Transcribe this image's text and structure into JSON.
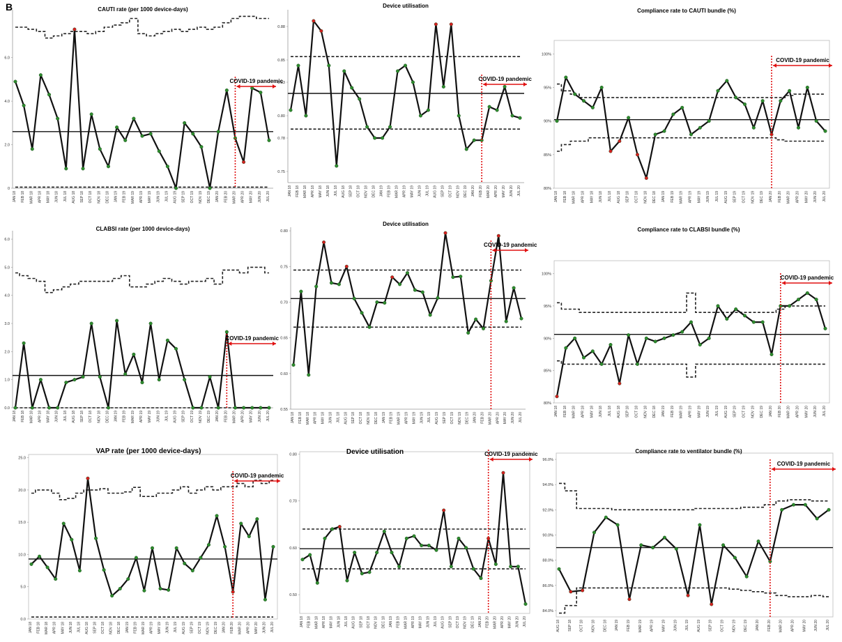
{
  "panel_label": "B",
  "colors": {
    "line": "#111111",
    "marker_normal": "#2e8b2e",
    "marker_signal": "#d42020",
    "covid": "#e01010"
  },
  "chart_data": [
    {
      "type": "line",
      "title": "CAUTI rate (per 1000 device-days)",
      "covid_label": "COVID-19 pandemic",
      "yticks": [
        "0",
        "2.0",
        "4.0",
        "6.0"
      ],
      "ylim": [
        0,
        8.2
      ],
      "x": [
        "JAN 18",
        "FEB 18",
        "MAR 18",
        "APR 18",
        "MAY 18",
        "JUN 18",
        "JUL 18",
        "AUG 18",
        "SEP 18",
        "OCT 18",
        "NOV 18",
        "DEC 18",
        "JAN 19",
        "FEB 19",
        "MAR 19",
        "APR 19",
        "MAY 19",
        "JUN 19",
        "JUL 19",
        "AUG 19",
        "SEP 19",
        "OCT 19",
        "NOV 19",
        "DEC 19",
        "JAN 20",
        "FEB 20",
        "MAR 20",
        "APR 20",
        "MAY 20",
        "JUN 20",
        "JUL 20"
      ],
      "values": [
        4.9,
        3.8,
        1.8,
        5.2,
        4.3,
        3.2,
        0.9,
        7.3,
        0.9,
        3.4,
        1.8,
        1.0,
        2.8,
        2.2,
        3.2,
        2.4,
        2.5,
        1.7,
        1.0,
        0.0,
        3.0,
        2.5,
        1.9,
        0.0,
        2.6,
        4.5,
        2.3,
        1.2,
        4.6,
        4.4,
        2.2
      ],
      "signals": [
        7,
        27
      ],
      "center": 2.6,
      "lcl": 0.05,
      "ucl": [
        7.4,
        7.4,
        7.3,
        7.2,
        6.9,
        7.0,
        7.1,
        7.2,
        7.2,
        7.1,
        7.2,
        7.4,
        7.5,
        7.6,
        7.8,
        7.1,
        7.0,
        7.1,
        7.2,
        7.3,
        7.2,
        7.3,
        7.4,
        7.3,
        7.4,
        7.6,
        7.8,
        7.9,
        7.9,
        7.8,
        7.8
      ],
      "covid_index": 26
    },
    {
      "type": "line",
      "title": "Device utilisation",
      "covid_label": "COVID-19 pandemic",
      "yticks": [
        "0.75",
        "0.78",
        "0.80",
        "0.83",
        "0.85",
        "0.88"
      ],
      "ylim": [
        0.74,
        0.895
      ],
      "x": [
        "JAN 18",
        "FEB 18",
        "MAR 18",
        "APR 18",
        "MAY 18",
        "JUN 18",
        "JUL 18",
        "AUG 18",
        "SEP 18",
        "OCT 18",
        "NOV 18",
        "DEC 18",
        "JAN 19",
        "FEB 19",
        "MAR 19",
        "APR 19",
        "MAY 19",
        "JUN 19",
        "JUL 19",
        "AUG 19",
        "SEP 19",
        "OCT 19",
        "NOV 19",
        "DEC 19",
        "JAN 20",
        "FEB 20",
        "MAR 20",
        "APR 20",
        "MAY 20",
        "JUN 20",
        "JUL 20"
      ],
      "values": [
        0.805,
        0.845,
        0.8,
        0.885,
        0.876,
        0.845,
        0.755,
        0.84,
        0.825,
        0.815,
        0.79,
        0.78,
        0.78,
        0.79,
        0.84,
        0.845,
        0.83,
        0.8,
        0.805,
        0.882,
        0.826,
        0.882,
        0.8,
        0.77,
        0.778,
        0.778,
        0.808,
        0.805,
        0.826,
        0.8,
        0.798
      ],
      "signals": [
        3,
        4,
        19,
        21
      ],
      "center": 0.82,
      "lcl": 0.788,
      "ucl": 0.853,
      "covid_index": 25
    },
    {
      "type": "line",
      "title": "Compliance rate to CAUTI bundle (%)",
      "covid_label": "COVID-19 pandemic",
      "yticks": [
        "80%",
        "85%",
        "90%",
        "95%",
        "100%"
      ],
      "ylim": [
        80,
        102
      ],
      "x": [
        "JAN 18",
        "FEB 18",
        "MAR 18",
        "APR 18",
        "MAY 18",
        "JUN 18",
        "JUL 18",
        "AUG 18",
        "SEP 18",
        "OCT 18",
        "NOV 18",
        "DEC 18",
        "JAN 19",
        "FEB 19",
        "MAR 19",
        "APR 19",
        "MAY 19",
        "JUN 19",
        "JUL 19",
        "AUG 19",
        "SEP 19",
        "OCT 19",
        "NOV 19",
        "DEC 19",
        "JAN 20",
        "FEB 20",
        "MAR 20",
        "APR 20",
        "MAY 20",
        "JUN 20",
        "JUL 20"
      ],
      "values": [
        90,
        96.5,
        94,
        93,
        92,
        95,
        85.5,
        87,
        90.5,
        85,
        81.5,
        88,
        88.5,
        91,
        92,
        88,
        89,
        90,
        94.5,
        96,
        93.5,
        92.5,
        89,
        93,
        88,
        93,
        94.5,
        89,
        95,
        90,
        88.5
      ],
      "signals": [
        6,
        7,
        9,
        10,
        24
      ],
      "center": 90.2,
      "lcl": [
        85.5,
        86.5,
        87,
        87,
        87.5,
        87.5,
        87.5,
        87.5,
        87.5,
        87.5,
        87.5,
        87.5,
        87.5,
        87.5,
        87.5,
        87.5,
        87.5,
        87.5,
        87.5,
        87.5,
        87.5,
        87.5,
        87.5,
        87.5,
        87.5,
        87.2,
        87,
        87,
        87,
        87,
        87
      ],
      "ucl": [
        95.5,
        94.5,
        94,
        93.5,
        93.5,
        93.5,
        93.5,
        93.5,
        93.5,
        93.5,
        93.5,
        93.5,
        93.5,
        93.5,
        93.5,
        93.5,
        93.5,
        93.5,
        93.5,
        93.5,
        93.5,
        93.5,
        93.5,
        93.5,
        93.5,
        93.5,
        93.8,
        94,
        94,
        94,
        94
      ],
      "covid_index": 24
    },
    {
      "type": "line",
      "title": "CLABSI rate (per 1000 device-days)",
      "covid_label": "COVID-19 pandemic",
      "yticks": [
        "0.0",
        "1.0",
        "2.0",
        "3.0",
        "4.0",
        "5.0",
        "6.0"
      ],
      "ylim": [
        0,
        6.3
      ],
      "x": [
        "JAN 18",
        "FEB 18",
        "MAR 18",
        "APR 18",
        "MAY 18",
        "JUN 18",
        "JUL 18",
        "AUG 18",
        "SEP 18",
        "OCT 18",
        "NOV 18",
        "DEC 18",
        "JAN 19",
        "FEB 19",
        "MAR 19",
        "APR 19",
        "MAY 19",
        "JUN 19",
        "JUL 19",
        "AUG 19",
        "SEP 19",
        "OCT 19",
        "NOV 19",
        "DEC 19",
        "JAN 20",
        "FEB 20",
        "MAR 20",
        "APR 20",
        "MAY 20",
        "JUN 20",
        "JUL 20"
      ],
      "values": [
        0.0,
        2.3,
        0.0,
        1.0,
        0.0,
        0.0,
        0.9,
        1.0,
        1.1,
        3.0,
        1.1,
        0.0,
        3.1,
        1.2,
        1.9,
        0.9,
        3.0,
        1.0,
        2.4,
        2.1,
        1.0,
        0.0,
        0.0,
        1.1,
        0.0,
        2.7,
        0.0,
        0.0,
        0.0,
        0.0,
        0.0
      ],
      "signals": [],
      "center": 1.15,
      "lcl": 0.0,
      "ucl": [
        4.8,
        4.7,
        4.6,
        4.5,
        4.1,
        4.2,
        4.3,
        4.4,
        4.5,
        4.5,
        4.5,
        4.5,
        4.6,
        4.7,
        4.3,
        4.3,
        4.4,
        4.5,
        4.6,
        4.5,
        4.4,
        4.5,
        4.5,
        4.6,
        4.4,
        4.9,
        4.9,
        4.8,
        5.0,
        5.0,
        4.8
      ],
      "covid_index": 25
    },
    {
      "type": "line",
      "title": "Device utilisation",
      "covid_label": "COVID-19 pandemic",
      "yticks": [
        "0.55",
        "0.60",
        "0.65",
        "0.70",
        "0.75",
        "0.80"
      ],
      "ylim": [
        0.55,
        0.805
      ],
      "x": [
        "JAN 18",
        "FEB 18",
        "MAR 18",
        "APR 18",
        "MAY 18",
        "JUN 18",
        "JUL 18",
        "AUG 18",
        "SEP 18",
        "OCT 18",
        "NOV 18",
        "DEC 18",
        "JAN 19",
        "FEB 19",
        "MAR 19",
        "APR 19",
        "MAY 19",
        "JUN 19",
        "JUL 19",
        "AUG 19",
        "SEP 19",
        "OCT 19",
        "NOV 19",
        "DEC 19",
        "JAN 20",
        "FEB 20",
        "MAR 20",
        "APR 20",
        "MAY 20",
        "JUN 20",
        "JUL 20"
      ],
      "values": [
        0.612,
        0.715,
        0.598,
        0.722,
        0.784,
        0.727,
        0.725,
        0.75,
        0.705,
        0.685,
        0.665,
        0.7,
        0.699,
        0.735,
        0.725,
        0.741,
        0.717,
        0.714,
        0.682,
        0.706,
        0.797,
        0.735,
        0.736,
        0.657,
        0.676,
        0.663,
        0.73,
        0.793,
        0.673,
        0.72,
        0.677
      ],
      "signals": [
        4,
        7,
        13,
        20,
        27
      ],
      "center": 0.705,
      "lcl": 0.665,
      "ucl": 0.745,
      "covid_index": 26
    },
    {
      "type": "line",
      "title": "Compliance rate to CLABSI bundle (%)",
      "covid_label": "COVID-19 pandemic",
      "yticks": [
        "80%",
        "85%",
        "90%",
        "95%",
        "100%"
      ],
      "ylim": [
        80,
        102
      ],
      "x": [
        "JAN 18",
        "FEB 18",
        "MAR 18",
        "APR 18",
        "MAY 18",
        "JUN 18",
        "JUL 18",
        "AUG 18",
        "SEP 18",
        "OCT 18",
        "NOV 18",
        "DEC 18",
        "JAN 19",
        "FEB 19",
        "MAR 19",
        "APR 19",
        "MAY 19",
        "JUN 19",
        "JUL 19",
        "AUG 19",
        "SEP 19",
        "OCT 19",
        "NOV 19",
        "DEC 19",
        "JAN 20",
        "FEB 20",
        "MAR 20",
        "APR 20",
        "MAY 20",
        "JUN 20",
        "JUL 20"
      ],
      "values": [
        81,
        88.5,
        90,
        87,
        88,
        86,
        89,
        83,
        90.5,
        86,
        90,
        89.5,
        90,
        90.5,
        91,
        92.5,
        89,
        90,
        95,
        93,
        94.5,
        93.5,
        92.5,
        92.5,
        87.5,
        95,
        95,
        96,
        97,
        96,
        91.5
      ],
      "signals": [
        0,
        7
      ],
      "center": 90.6,
      "lcl": [
        86.5,
        86,
        86,
        86,
        86,
        86,
        86,
        86,
        86,
        86,
        86,
        86,
        86,
        86,
        86,
        84,
        86,
        86,
        86,
        86,
        86,
        86,
        86,
        86,
        86,
        86,
        86,
        86,
        86,
        86,
        86
      ],
      "ucl": [
        95.5,
        94.5,
        94.5,
        94,
        94,
        94,
        94,
        94,
        94,
        94,
        94,
        94,
        94,
        94,
        94,
        97,
        94,
        94,
        94,
        94,
        94,
        94,
        94,
        94,
        94,
        94.5,
        95,
        95,
        95,
        95,
        95
      ],
      "covid_index": 25
    },
    {
      "type": "line",
      "title": "VAP rate (per 1000 device-days)",
      "covid_label": "COVID-19 pandemic",
      "yticks": [
        "0.0",
        "5.0",
        "10.0",
        "15.0",
        "20.0",
        "25.0"
      ],
      "ylim": [
        0,
        25.5
      ],
      "x": [
        "JAN 18",
        "FEB 18",
        "MAR 18",
        "APR 18",
        "MAY 18",
        "JUN 18",
        "JUL 18",
        "AUG 18",
        "SEP 18",
        "OCT 18",
        "NOV 18",
        "DEC 18",
        "JAN 19",
        "FEB 19",
        "MAR 19",
        "APR 19",
        "MAY 19",
        "JUN 19",
        "JUL 19",
        "AUG 19",
        "SEP 19",
        "OCT 19",
        "NOV 19",
        "DEC 19",
        "JAN 20",
        "FEB 20",
        "MAR 20",
        "APR 20",
        "MAY 20",
        "JUN 20",
        "JUL 20"
      ],
      "values": [
        8.5,
        9.7,
        8.0,
        6.2,
        14.8,
        12.3,
        7.5,
        21.8,
        12.5,
        7.6,
        3.6,
        4.7,
        6.2,
        9.5,
        4.4,
        11.0,
        4.7,
        4.5,
        11.0,
        8.6,
        7.5,
        9.5,
        11.5,
        16.0,
        11.2,
        4.2,
        14.8,
        12.8,
        15.5,
        3.0,
        11.2
      ],
      "signals": [
        7,
        25
      ],
      "center": 9.3,
      "lcl": 0.3,
      "ucl": [
        19.5,
        20,
        20,
        19.5,
        18.5,
        18.7,
        19.5,
        20,
        20,
        20.2,
        19.5,
        19.5,
        19.7,
        20.4,
        19,
        19,
        19.5,
        19.5,
        20,
        20.5,
        19.5,
        20,
        20.5,
        20,
        20.5,
        20.5,
        21,
        20.5,
        21.5,
        21,
        21.5
      ],
      "covid_index": 25
    },
    {
      "type": "line",
      "title": "Device utilisation",
      "covid_label": "COVID-19 pandemic",
      "yticks": [
        "0.50",
        "0.60",
        "0.70",
        "0.80"
      ],
      "ylim": [
        0.46,
        0.805
      ],
      "x": [
        "JAN 18",
        "FEB 18",
        "MAR 18",
        "APR 18",
        "MAY 18",
        "JUN 18",
        "JUL 18",
        "AUG 18",
        "SEP 18",
        "OCT 18",
        "NOV 18",
        "DEC 18",
        "JAN 19",
        "FEB 19",
        "MAR 19",
        "APR 19",
        "MAY 19",
        "JUN 19",
        "JUL 19",
        "AUG 19",
        "SEP 19",
        "OCT 19",
        "NOV 19",
        "DEC 19",
        "JAN 20",
        "FEB 20",
        "MAR 20",
        "APR 20",
        "MAY 20",
        "JUN 20",
        "JUL 20"
      ],
      "values": [
        0.575,
        0.585,
        0.525,
        0.62,
        0.64,
        0.645,
        0.53,
        0.59,
        0.545,
        0.548,
        0.59,
        0.635,
        0.59,
        0.56,
        0.62,
        0.625,
        0.605,
        0.605,
        0.595,
        0.68,
        0.56,
        0.62,
        0.6,
        0.555,
        0.535,
        0.62,
        0.565,
        0.76,
        0.56,
        0.56,
        0.48
      ],
      "signals": [
        5,
        19,
        25,
        27
      ],
      "center": 0.598,
      "lcl": 0.555,
      "ucl": 0.64,
      "covid_index": 25
    },
    {
      "type": "line",
      "title": "Compliance rate to ventilator bundle (%)",
      "covid_label": "COVID-19 pandemic",
      "yticks": [
        "84.0%",
        "86.0%",
        "88.0%",
        "90.0%",
        "92.0%",
        "94.0%",
        "96.0%"
      ],
      "ylim": [
        83.5,
        96.5
      ],
      "x": [
        "AUG 18",
        "SEP 18",
        "OCT 18",
        "NOV 18",
        "DEC 18",
        "JAN 19",
        "FEB 19",
        "MAR 19",
        "APR 19",
        "MAY 19",
        "JUN 19",
        "JUL 19",
        "AUG 19",
        "SEP 19",
        "OCT 19",
        "NOV 19",
        "DEC 19",
        "JAN 20",
        "FEB 20",
        "MAR 20",
        "APR 20",
        "MAY 20",
        "JUN 20",
        "JUL 20"
      ],
      "values": [
        87.3,
        85.5,
        85.6,
        90.2,
        91.4,
        90.8,
        84.9,
        89.2,
        89.0,
        89.8,
        88.9,
        85.2,
        90.8,
        84.5,
        89.2,
        88.2,
        86.7,
        89.5,
        87.9,
        92.0,
        92.4,
        92.4,
        91.3,
        92.0
      ],
      "signals": [
        1,
        2,
        6,
        11,
        13
      ],
      "center": 89.0,
      "lcl": [
        83.8,
        84.4,
        85.8,
        85.8,
        85.8,
        85.8,
        85.8,
        85.8,
        85.8,
        85.8,
        85.8,
        85.8,
        85.8,
        85.8,
        85.8,
        85.7,
        85.6,
        85.5,
        85.4,
        85.2,
        85.1,
        85.1,
        85.2,
        85.1
      ],
      "ucl": [
        94.1,
        93.5,
        92.1,
        92.1,
        92.1,
        92.0,
        92.0,
        92.0,
        92.0,
        92.0,
        92.0,
        92.0,
        92.1,
        92.1,
        92.1,
        92.1,
        92.2,
        92.2,
        92.4,
        92.7,
        92.8,
        92.8,
        92.7,
        92.7
      ],
      "covid_index": 18
    }
  ]
}
